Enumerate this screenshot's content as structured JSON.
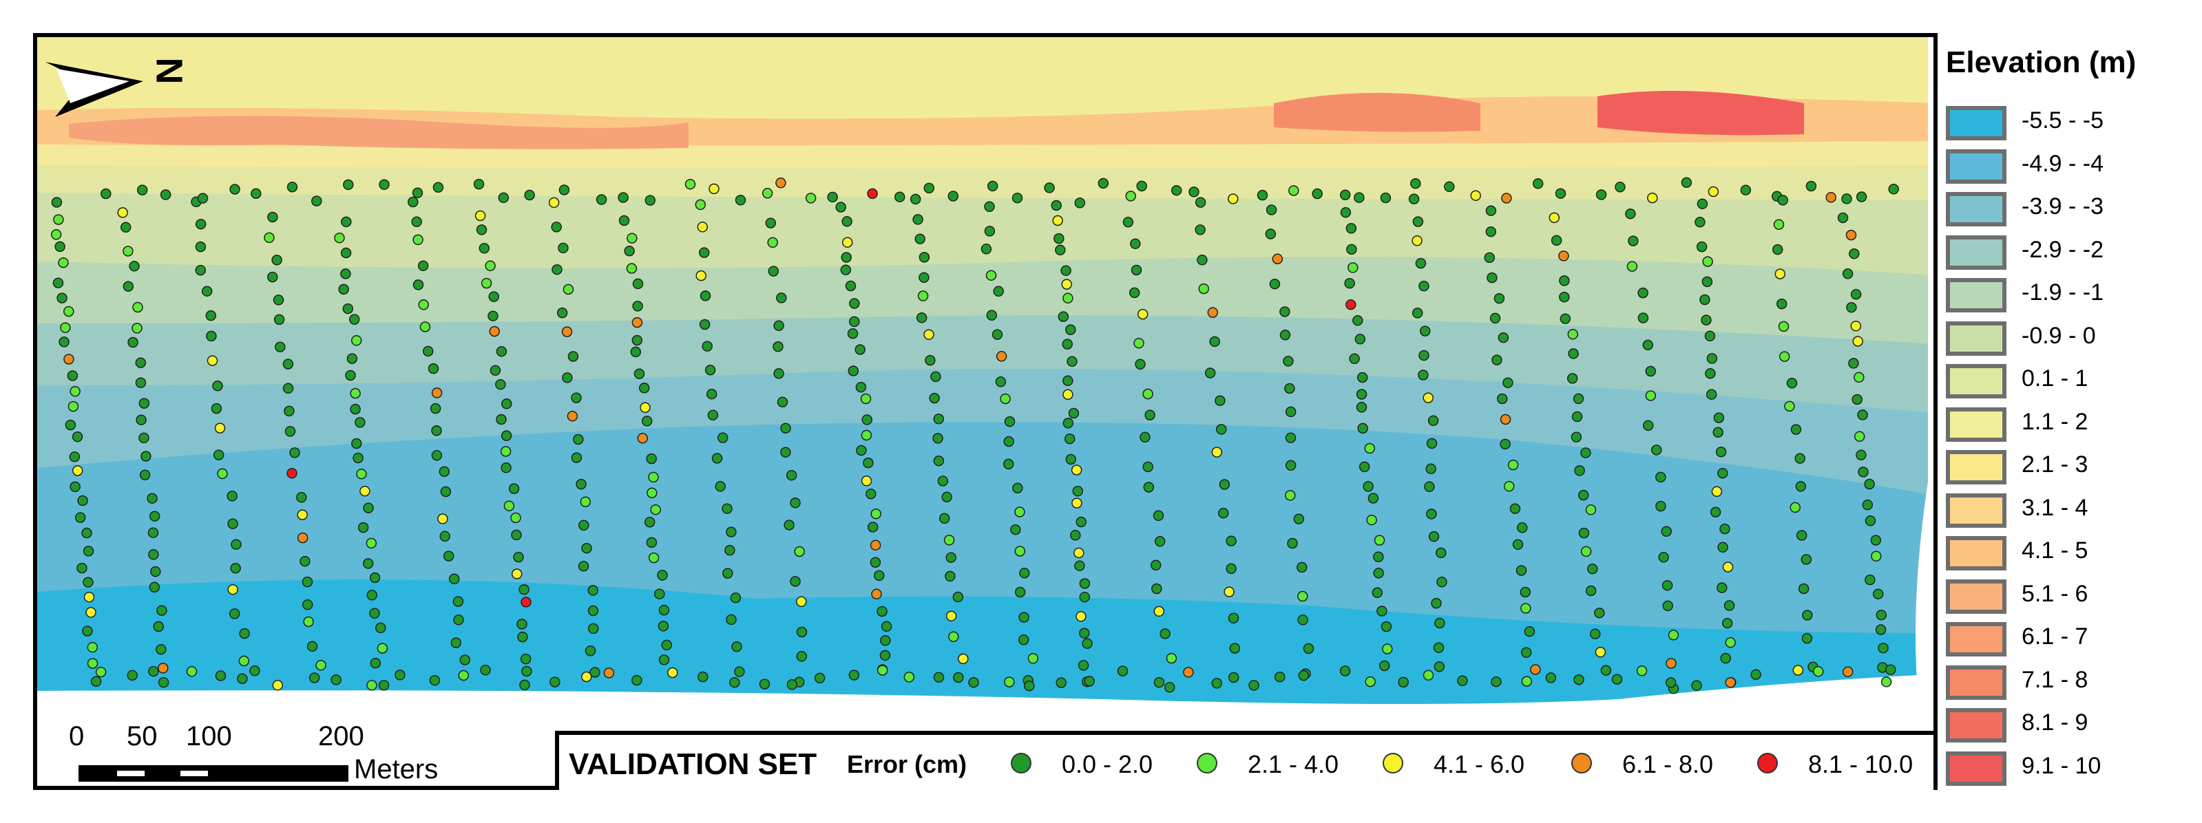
{
  "legend": {
    "title": "Elevation (m)",
    "items": [
      {
        "label": "-5.5 - -5",
        "color": "#2bb5dc"
      },
      {
        "label": "-4.9 - -4",
        "color": "#5dbad8"
      },
      {
        "label": "-3.9 - -3",
        "color": "#7dc3cf"
      },
      {
        "label": "-2.9 - -2",
        "color": "#9ccbc3"
      },
      {
        "label": "-1.9 - -1",
        "color": "#b7d8b5"
      },
      {
        "label": "-0.9 - 0",
        "color": "#cbe0a8"
      },
      {
        "label": "0.1 - 1",
        "color": "#dde8a0"
      },
      {
        "label": "1.1 - 2",
        "color": "#f0ef98"
      },
      {
        "label": "2.1 - 3",
        "color": "#fbe88a"
      },
      {
        "label": "3.1 - 4",
        "color": "#fdd689"
      },
      {
        "label": "4.1 - 5",
        "color": "#fcc27f"
      },
      {
        "label": "5.1 - 6",
        "color": "#fbb27a"
      },
      {
        "label": "6.1 - 7",
        "color": "#f99e70"
      },
      {
        "label": "7.1 - 8",
        "color": "#f78a66"
      },
      {
        "label": "8.1 - 9",
        "color": "#f46e60"
      },
      {
        "label": "9.1 - 10",
        "color": "#f15a5a"
      }
    ]
  },
  "validation": {
    "title": "VALIDATION SET",
    "subtitle": "Error (cm)",
    "classes": [
      {
        "label": "0.0 - 2.0",
        "color": "#1f9a2a"
      },
      {
        "label": "2.1 - 4.0",
        "color": "#5ee83a"
      },
      {
        "label": "4.1 - 6.0",
        "color": "#f5f22a"
      },
      {
        "label": "6.1 - 8.0",
        "color": "#f08a1a"
      },
      {
        "label": "8.1 - 10.0",
        "color": "#ea1c1c"
      }
    ]
  },
  "scalebar": {
    "ticks": [
      "0",
      "50",
      "100",
      "200"
    ],
    "unit": "Meters"
  },
  "north_arrow": {
    "label": "N",
    "icon": "north-arrow-icon"
  }
}
